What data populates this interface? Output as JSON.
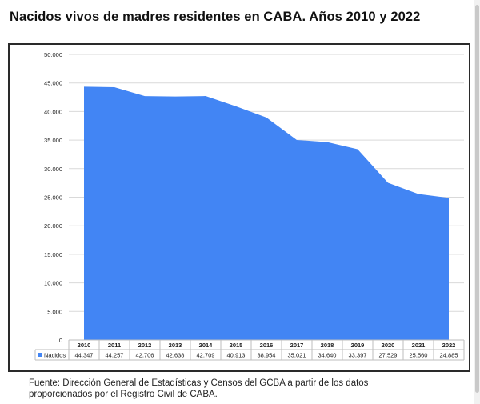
{
  "title": "Nacidos vivos de madres residentes en CABA. Años 2010 y 2022",
  "source_line1": "Fuente: Dirección General de Estadísticas y Censos del GCBA a partir de los datos",
  "source_line2": "proporcionados por el Registro Civil de CABA.",
  "colors": {
    "area": "#4285f4",
    "grid": "#d9d9d9",
    "text": "#222222"
  },
  "chart_data": {
    "type": "area",
    "categories": [
      "2010",
      "2011",
      "2012",
      "2013",
      "2014",
      "2015",
      "2016",
      "2017",
      "2018",
      "2019",
      "2020",
      "2021",
      "2022"
    ],
    "series": [
      {
        "name": "Nacidos",
        "values": [
          44347,
          44257,
          42706,
          42638,
          42709,
          40913,
          38954,
          35021,
          34640,
          33397,
          27529,
          25560,
          24885
        ],
        "labels": [
          "44.347",
          "44.257",
          "42.706",
          "42.638",
          "42.709",
          "40.913",
          "38.954",
          "35.021",
          "34.640",
          "33.397",
          "27.529",
          "25.560",
          "24.885"
        ]
      }
    ],
    "y_ticks": [
      "0",
      "5.000",
      "10.000",
      "15.000",
      "20.000",
      "25.000",
      "30.000",
      "35.000",
      "40.000",
      "45.000",
      "50.000"
    ],
    "ylim": [
      0,
      50000
    ],
    "grid": true,
    "legend": "data-table"
  }
}
